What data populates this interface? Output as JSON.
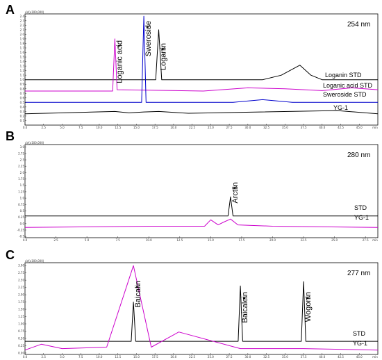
{
  "panels": [
    {
      "letter": "A",
      "wavelength": "254 nm",
      "scale": "uV(x100,000)",
      "y_ticks": [
        "0.1",
        "0.2",
        "0.3",
        "0.4",
        "0.5",
        "0.6",
        "0.7",
        "0.8",
        "0.9",
        "1.0",
        "1.1",
        "1.2",
        "1.3",
        "1.4",
        "1.5",
        "1.6",
        "1.7",
        "1.8",
        "1.9",
        "2.0",
        "2.1",
        "2.2",
        "2.3",
        "2.4"
      ],
      "x_ticks": [
        "0.0",
        "2.5",
        "5.0",
        "7.5",
        "10.0",
        "12.5",
        "15.0",
        "17.5",
        "20.0",
        "22.5",
        "25.0",
        "27.5",
        "30.0",
        "32.5",
        "35.0",
        "37.5",
        "40.0",
        "42.5",
        "45.0",
        "min"
      ],
      "peaks": [
        {
          "label": "Loganic acid",
          "time": 12.1
        },
        {
          "label": "Sweroside",
          "time": 16.0
        },
        {
          "label": "Loganin",
          "time": 18.0
        }
      ],
      "traces": [
        {
          "name": "Loganin  STD",
          "color": "#000000"
        },
        {
          "name": "Loganic acid  STD",
          "color": "#cc00cc"
        },
        {
          "name": "Sweroside STD",
          "color": "#0000cc"
        },
        {
          "name": "YG-1",
          "color": "#000000"
        }
      ]
    },
    {
      "letter": "B",
      "wavelength": "280 nm",
      "scale": "uV(x100,000)",
      "y_ticks": [
        "-0.5",
        "-0.25",
        "0.0",
        "0.25",
        "0.5",
        "0.75",
        "1.0",
        "1.25",
        "1.5",
        "1.75",
        "2.0",
        "2.25",
        "2.5",
        "2.75",
        "3.0"
      ],
      "x_ticks": [
        "0.0",
        "2.5",
        "5.0",
        "7.5",
        "10.0",
        "12.5",
        "15.0",
        "17.5",
        "20.0",
        "22.5",
        "25.0",
        "27.5",
        "min"
      ],
      "peaks": [
        {
          "label": "Arctiin",
          "time": 16.6
        }
      ],
      "traces": [
        {
          "name": "STD",
          "color": "#000000"
        },
        {
          "name": "YG-1",
          "color": "#cc00cc"
        }
      ]
    },
    {
      "letter": "C",
      "wavelength": "277 nm",
      "scale": "uV(x100,000)",
      "y_ticks": [
        "0.00",
        "0.25",
        "0.50",
        "0.75",
        "1.00",
        "1.25",
        "1.50",
        "1.75",
        "2.00",
        "2.25",
        "2.50",
        "2.75",
        "3.00"
      ],
      "x_ticks": [
        "0.0",
        "2.5",
        "5.0",
        "7.5",
        "10.0",
        "12.5",
        "15.0",
        "17.5",
        "20.0",
        "22.5",
        "25.0",
        "27.5",
        "30.0",
        "32.5",
        "35.0",
        "37.5",
        "40.0",
        "42.5",
        "45.0",
        "min"
      ],
      "peaks": [
        {
          "label": "Baicalin",
          "time": 14.6
        },
        {
          "label": "Baicalein",
          "time": 29.0
        },
        {
          "label": "Wogonin",
          "time": 37.5
        }
      ],
      "traces": [
        {
          "name": "STD",
          "color": "#000000"
        },
        {
          "name": "YG-1",
          "color": "#cc00cc"
        }
      ]
    }
  ],
  "chart_data": [
    {
      "type": "line",
      "title": "A",
      "annotations": [
        "254 nm"
      ],
      "xlabel": "min",
      "ylabel": "uV(x100,000)",
      "xlim": [
        0,
        47.5
      ],
      "series": [
        {
          "name": "Loganin  STD",
          "x": [
            0,
            17.6,
            18.0,
            18.4,
            32,
            34.5,
            37,
            38.5,
            40,
            44,
            47.5
          ],
          "values": [
            1.0,
            1.0,
            2.1,
            1.0,
            1.0,
            1.1,
            1.32,
            1.1,
            1.0,
            1.0,
            1.0
          ]
        },
        {
          "name": "Loganic acid  STD",
          "x": [
            0,
            11.8,
            12.1,
            12.4,
            24,
            30,
            35,
            40,
            44,
            47.5
          ],
          "values": [
            0.75,
            0.75,
            1.9,
            0.78,
            0.75,
            0.82,
            0.8,
            0.76,
            0.82,
            0.78
          ]
        },
        {
          "name": "Sweroside STD",
          "x": [
            0,
            15.7,
            16.0,
            16.3,
            28,
            32,
            36,
            47.5
          ],
          "values": [
            0.5,
            0.5,
            2.4,
            0.5,
            0.5,
            0.56,
            0.5,
            0.5
          ]
        },
        {
          "name": "YG-1",
          "x": [
            0,
            5,
            12.1,
            14,
            16.0,
            18.0,
            22,
            42,
            47.5
          ],
          "values": [
            0.25,
            0.27,
            0.3,
            0.27,
            0.29,
            0.3,
            0.26,
            0.32,
            0.25
          ]
        }
      ]
    },
    {
      "type": "line",
      "title": "B",
      "annotations": [
        "280 nm"
      ],
      "xlabel": "min",
      "ylabel": "uV(x100,000)",
      "xlim": [
        0,
        28.5
      ],
      "series": [
        {
          "name": "STD",
          "x": [
            0,
            16.4,
            16.6,
            16.8,
            28.5
          ],
          "values": [
            0.3,
            0.3,
            1.05,
            0.3,
            0.3
          ]
        },
        {
          "name": "YG-1",
          "x": [
            0,
            10,
            14.5,
            15.0,
            15.6,
            16.0,
            16.6,
            17.2,
            20,
            28.5
          ],
          "values": [
            -0.15,
            -0.1,
            -0.1,
            0.15,
            -0.05,
            0.05,
            0.18,
            -0.05,
            -0.1,
            -0.15
          ]
        }
      ]
    },
    {
      "type": "line",
      "title": "C",
      "annotations": [
        "277 nm"
      ],
      "xlabel": "min",
      "ylabel": "uV(x100,000)",
      "xlim": [
        0,
        47.5
      ],
      "series": [
        {
          "name": "STD",
          "x": [
            0,
            14.3,
            14.6,
            14.9,
            28.7,
            29.0,
            29.3,
            37.2,
            37.5,
            37.8,
            47.5
          ],
          "values": [
            0.4,
            0.4,
            1.75,
            0.4,
            0.4,
            2.3,
            0.4,
            0.4,
            2.45,
            0.4,
            0.4
          ]
        },
        {
          "name": "YG-1",
          "x": [
            0,
            2.2,
            5,
            11,
            14.6,
            17,
            20.7,
            29.0,
            37.5,
            47.5
          ],
          "values": [
            0.1,
            0.3,
            0.15,
            0.2,
            3.0,
            0.2,
            0.72,
            0.15,
            0.15,
            0.1
          ]
        }
      ]
    }
  ]
}
